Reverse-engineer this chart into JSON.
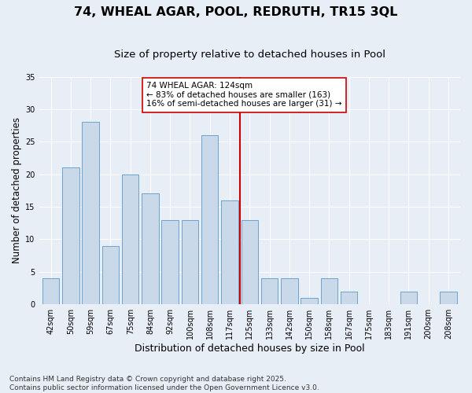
{
  "title": "74, WHEAL AGAR, POOL, REDRUTH, TR15 3QL",
  "subtitle": "Size of property relative to detached houses in Pool",
  "xlabel": "Distribution of detached houses by size in Pool",
  "ylabel": "Number of detached properties",
  "footnote": "Contains HM Land Registry data © Crown copyright and database right 2025.\nContains public sector information licensed under the Open Government Licence v3.0.",
  "categories": [
    "42sqm",
    "50sqm",
    "59sqm",
    "67sqm",
    "75sqm",
    "84sqm",
    "92sqm",
    "100sqm",
    "108sqm",
    "117sqm",
    "125sqm",
    "133sqm",
    "142sqm",
    "150sqm",
    "158sqm",
    "167sqm",
    "175sqm",
    "183sqm",
    "191sqm",
    "200sqm",
    "208sqm"
  ],
  "values": [
    4,
    21,
    28,
    9,
    20,
    17,
    13,
    13,
    26,
    16,
    13,
    4,
    4,
    1,
    4,
    2,
    0,
    0,
    2,
    0,
    2
  ],
  "bar_color": "#cad9ea",
  "bar_edge_color": "#6ba3cc",
  "bar_width": 0.85,
  "vline_x": 9.5,
  "vline_color": "#cc0000",
  "annotation_text": "74 WHEAL AGAR: 124sqm\n← 83% of detached houses are smaller (163)\n16% of semi-detached houses are larger (31) →",
  "annotation_box_color": "#ffffff",
  "annotation_box_edge": "#cc0000",
  "ylim": [
    0,
    35
  ],
  "yticks": [
    0,
    5,
    10,
    15,
    20,
    25,
    30,
    35
  ],
  "bg_color": "#e8eef6",
  "grid_color": "#ffffff",
  "title_fontsize": 11.5,
  "subtitle_fontsize": 9.5,
  "ylabel_fontsize": 8.5,
  "xlabel_fontsize": 9,
  "tick_fontsize": 7,
  "footnote_fontsize": 6.5,
  "annotation_fontsize": 7.5
}
